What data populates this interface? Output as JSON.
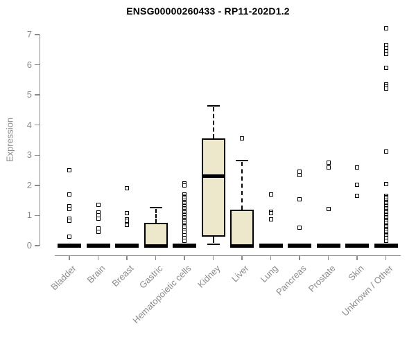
{
  "title": "ENSG00000260433 - RP11-202D1.2",
  "y_axis": {
    "label": "Expression",
    "ticks": [
      "0",
      "1",
      "2",
      "3",
      "4",
      "5",
      "6",
      "7"
    ]
  },
  "colors": {
    "background": "#ffffff",
    "title_text": "#000000",
    "axis": "#8b8b8b",
    "axis_text": "#8b8b8b",
    "box_fill": "#ede8cc",
    "box_border": "#000000",
    "median": "#000000",
    "outlier_marker": "#000000"
  },
  "marker": {
    "shape": "open-square",
    "semantic": "outlier-point-marker"
  },
  "chart_data": {
    "type": "boxplot",
    "title": "ENSG00000260433 - RP11-202D1.2",
    "xlabel": "",
    "ylabel": "Expression",
    "ylim": [
      0,
      7.3
    ],
    "y_ticks": [
      0,
      1,
      2,
      3,
      4,
      5,
      6,
      7
    ],
    "grid": false,
    "legend": false,
    "categories": [
      "Bladder",
      "Brain",
      "Breast",
      "Gastric",
      "Hematopoietic cells",
      "Kidney",
      "Liver",
      "Lung",
      "Pancreas",
      "Prostate",
      "Skin",
      "Unknown / Other"
    ],
    "series": [
      {
        "name": "Bladder",
        "q1": 0,
        "median": 0,
        "q3": 0,
        "whisker_low": 0,
        "whisker_high": 0,
        "outliers": [
          2.5,
          1.7,
          1.3,
          1.22,
          0.9,
          0.82,
          0.3
        ]
      },
      {
        "name": "Brain",
        "q1": 0,
        "median": 0,
        "q3": 0,
        "whisker_low": 0,
        "whisker_high": 0,
        "outliers": [
          1.35,
          1.1,
          1.0,
          0.9,
          0.57,
          0.45
        ]
      },
      {
        "name": "Breast",
        "q1": 0,
        "median": 0,
        "q3": 0,
        "whisker_low": 0,
        "whisker_high": 0,
        "outliers": [
          1.9,
          1.07,
          0.88,
          0.82,
          0.7
        ]
      },
      {
        "name": "Gastric",
        "q1": 0,
        "median": 0,
        "q3": 0.76,
        "whisker_low": 0,
        "whisker_high": 1.26,
        "outliers": []
      },
      {
        "name": "Hematopoietic cells",
        "q1": 0,
        "median": 0,
        "q3": 0,
        "whisker_low": 0,
        "whisker_high": 0,
        "outliers": [
          2.07,
          2.0,
          1.7,
          1.65,
          1.6,
          1.55,
          1.5,
          1.45,
          1.4,
          1.35,
          1.3,
          1.25,
          1.2,
          1.15,
          1.1,
          1.05,
          1.0,
          0.95,
          0.9,
          0.85,
          0.8,
          0.75,
          0.7,
          0.65,
          0.6,
          0.5,
          0.45,
          0.35,
          0.25,
          0.15
        ]
      },
      {
        "name": "Kidney",
        "q1": 0.3,
        "median": 2.3,
        "q3": 3.55,
        "whisker_low": 0.05,
        "whisker_high": 4.63,
        "outliers": []
      },
      {
        "name": "Liver",
        "q1": 0,
        "median": 0,
        "q3": 1.2,
        "whisker_low": 0,
        "whisker_high": 2.82,
        "outliers": [
          3.55
        ]
      },
      {
        "name": "Lung",
        "q1": 0,
        "median": 0,
        "q3": 0,
        "whisker_low": 0,
        "whisker_high": 0,
        "outliers": [
          1.7,
          1.13,
          1.07,
          0.88
        ]
      },
      {
        "name": "Pancreas",
        "q1": 0,
        "median": 0,
        "q3": 0,
        "whisker_low": 0,
        "whisker_high": 0,
        "outliers": [
          2.45,
          2.35,
          1.53,
          0.6
        ]
      },
      {
        "name": "Prostate",
        "q1": 0,
        "median": 0,
        "q3": 0,
        "whisker_low": 0,
        "whisker_high": 0,
        "outliers": [
          2.75,
          2.6,
          1.22
        ]
      },
      {
        "name": "Skin",
        "q1": 0,
        "median": 0,
        "q3": 0,
        "whisker_low": 0,
        "whisker_high": 0,
        "outliers": [
          2.6,
          2.03,
          1.65
        ]
      },
      {
        "name": "Unknown / Other",
        "q1": 0,
        "median": 0,
        "q3": 0,
        "whisker_low": 0,
        "whisker_high": 0,
        "outliers": [
          7.2,
          6.65,
          6.55,
          6.45,
          6.35,
          5.9,
          5.35,
          5.28,
          5.2,
          3.12,
          2.05,
          1.65,
          1.6,
          1.55,
          1.5,
          1.45,
          1.4,
          1.35,
          1.3,
          1.25,
          1.2,
          1.15,
          1.1,
          1.05,
          1.0,
          0.95,
          0.9,
          0.85,
          0.8,
          0.75,
          0.7,
          0.65,
          0.6,
          0.55,
          0.5,
          0.45,
          0.4,
          0.35,
          0.3,
          0.25,
          0.15
        ]
      }
    ]
  }
}
